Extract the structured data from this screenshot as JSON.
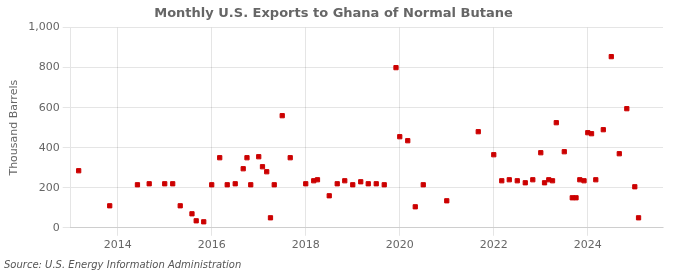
{
  "chart_data": {
    "type": "scatter",
    "title": "Monthly U.S. Exports to Ghana of Normal Butane",
    "ylabel": "Thousand Barrels",
    "annotation": "Source: U.S. Energy Information Administration",
    "color": "#cc0000",
    "marker": "square",
    "grid": true,
    "xlim": [
      2013.0,
      2025.6
    ],
    "xticks": [
      2014,
      2016,
      2018,
      2020,
      2022,
      2024
    ],
    "ylim": [
      0,
      1000
    ],
    "yticks": [
      0,
      200,
      400,
      600,
      800,
      {
        "value": 1000,
        "label": "1,000"
      }
    ],
    "x": [
      2013.17,
      2013.83,
      2014.42,
      2014.67,
      2015.0,
      2015.17,
      2015.33,
      2015.58,
      2015.67,
      2015.83,
      2016.0,
      2016.17,
      2016.33,
      2016.5,
      2016.67,
      2016.75,
      2016.83,
      2017.0,
      2017.08,
      2017.17,
      2017.25,
      2017.33,
      2017.5,
      2017.67,
      2018.0,
      2018.17,
      2018.25,
      2018.5,
      2018.67,
      2018.83,
      2019.0,
      2019.17,
      2019.33,
      2019.5,
      2019.67,
      2019.92,
      2020.0,
      2020.17,
      2020.33,
      2020.5,
      2021.0,
      2021.67,
      2022.0,
      2022.17,
      2022.33,
      2022.5,
      2022.67,
      2022.83,
      2023.0,
      2023.08,
      2023.17,
      2023.25,
      2023.33,
      2023.5,
      2023.67,
      2023.75,
      2023.83,
      2023.92,
      2024.0,
      2024.08,
      2024.17,
      2024.33,
      2024.5,
      2024.67,
      2024.83,
      2025.0,
      2025.08
    ],
    "values": [
      285,
      110,
      215,
      220,
      220,
      220,
      110,
      70,
      35,
      30,
      215,
      350,
      215,
      220,
      295,
      350,
      215,
      355,
      305,
      280,
      50,
      215,
      560,
      350,
      220,
      235,
      240,
      160,
      220,
      235,
      215,
      230,
      220,
      220,
      215,
      800,
      455,
      435,
      105,
      215,
      135,
      480,
      365,
      235,
      240,
      235,
      225,
      240,
      375,
      225,
      240,
      235,
      525,
      380,
      150,
      150,
      240,
      235,
      475,
      470,
      240,
      490,
      855,
      370,
      595,
      205,
      50
    ]
  }
}
